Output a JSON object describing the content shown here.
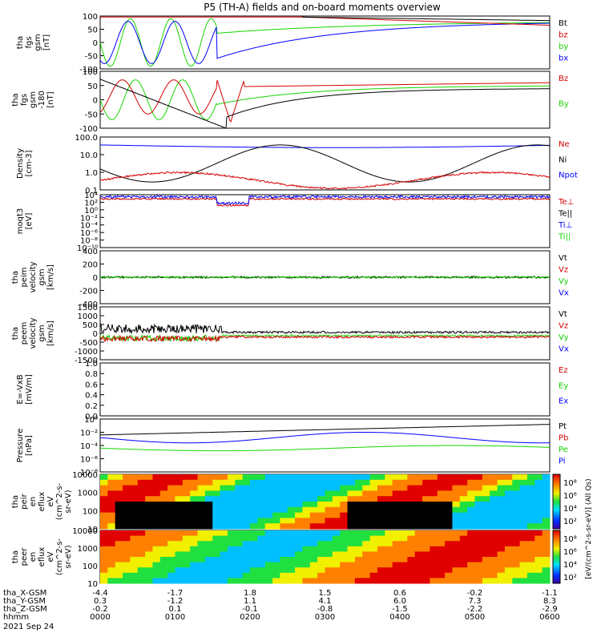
{
  "title": "P5 (TH-A) fields and on-board moments overview",
  "colors": {
    "black": "#000000",
    "red": "#d40000",
    "green": "#16d400",
    "blue": "#0000ff",
    "yellow": "#ffff00"
  },
  "chart_data": [
    {
      "type": "line",
      "ylabel": [
        "tha",
        "fgs",
        "gsm",
        "[nT]"
      ],
      "ylim": [
        -100,
        100
      ],
      "yticks": [
        "100",
        "50",
        "0",
        "-50",
        "-100"
      ],
      "legend": [
        {
          "name": "Bt",
          "color": "black"
        },
        {
          "name": "bz",
          "color": "red"
        },
        {
          "name": "by",
          "color": "green"
        },
        {
          "name": "bx",
          "color": "blue"
        }
      ]
    },
    {
      "type": "line",
      "ylabel": [
        "tha",
        "fgs",
        "gsm",
        "-180",
        "[nT]"
      ],
      "ylim": [
        -120,
        100
      ],
      "yticks": [
        "100",
        "50",
        "0",
        "-50",
        "-100"
      ],
      "legend": [
        {
          "name": "Bz",
          "color": "red"
        },
        {
          "name": "By",
          "color": "green"
        }
      ]
    },
    {
      "type": "line",
      "log": true,
      "ylabel": [
        "Density",
        "[cm-3]"
      ],
      "yticks": [
        "100.0",
        "10.0",
        "1.0",
        "0.1"
      ],
      "legend": [
        {
          "name": "Ne",
          "color": "red"
        },
        {
          "name": "Ni",
          "color": "black"
        },
        {
          "name": "Npot",
          "color": "blue"
        }
      ]
    },
    {
      "type": "line",
      "log": true,
      "ylabel": [
        "moqt3",
        "[eV]"
      ],
      "yticks": [
        "10⁴",
        "10²",
        "10⁰",
        "10⁻²",
        "10⁻⁴",
        "10⁻⁶",
        "10⁻⁸",
        "10⁻¹⁰"
      ],
      "legend": [
        {
          "name": "Te⊥",
          "color": "red"
        },
        {
          "name": "Te||",
          "color": "black"
        },
        {
          "name": "Ti⊥",
          "color": "blue"
        },
        {
          "name": "Ti||",
          "color": "green"
        }
      ]
    },
    {
      "type": "line",
      "ylabel": [
        "tha",
        "peim",
        "velocity",
        "gsm",
        "[km/s]"
      ],
      "ylim": [
        -400,
        400
      ],
      "yticks": [
        "400",
        "200",
        "0",
        "-200",
        "-400"
      ],
      "legend": [
        {
          "name": "Vt",
          "color": "black"
        },
        {
          "name": "Vz",
          "color": "red"
        },
        {
          "name": "Vy",
          "color": "green"
        },
        {
          "name": "Vx",
          "color": "blue"
        }
      ]
    },
    {
      "type": "line",
      "ylabel": [
        "tha",
        "peem",
        "velocity",
        "gsm",
        "[km/s]"
      ],
      "ylim": [
        -1500,
        1500
      ],
      "yticks": [
        "1500",
        "1000",
        "500",
        "0",
        "-500",
        "-1000",
        "-1500"
      ],
      "legend": [
        {
          "name": "Vt",
          "color": "black"
        },
        {
          "name": "Vz",
          "color": "red"
        },
        {
          "name": "Vy",
          "color": "green"
        },
        {
          "name": "Vx",
          "color": "blue"
        }
      ]
    },
    {
      "type": "line",
      "ylabel": [
        "E=-VxB",
        "[mV/m]"
      ],
      "ylim": [
        0,
        1
      ],
      "yticks": [
        "1.0",
        "0.8",
        "0.6",
        "0.4",
        "0.2",
        "0.0"
      ],
      "legend": [
        {
          "name": "Ez",
          "color": "red"
        },
        {
          "name": "Ey",
          "color": "green"
        },
        {
          "name": "Ex",
          "color": "blue"
        }
      ]
    },
    {
      "type": "line",
      "log": true,
      "ylabel": [
        "Pressure",
        "[nPa]"
      ],
      "yticks": [
        "10⁰",
        "10⁻²",
        "10⁻⁴",
        "10⁻⁶",
        "10⁻⁸"
      ],
      "legend": [
        {
          "name": "Pt",
          "color": "black"
        },
        {
          "name": "Pb",
          "color": "red"
        },
        {
          "name": "Pe",
          "color": "green"
        },
        {
          "name": "Pi",
          "color": "blue"
        }
      ]
    },
    {
      "type": "heatmap",
      "ylabel": [
        "tha",
        "peir",
        "en",
        "eflux",
        "eV",
        "(cm^2-s-",
        "sr-eV)"
      ],
      "yticks": [
        "10000",
        "1000",
        "100",
        "10"
      ]
    },
    {
      "type": "heatmap",
      "ylabel": [
        "tha",
        "peer",
        "en",
        "eflux",
        "eV",
        "(cm^2-s-",
        "sr-eV)"
      ],
      "yticks": [
        "10000",
        "1000",
        "100",
        "10"
      ]
    }
  ],
  "colorbar": {
    "label": "[eV/(cm^2-s-sr-eV)] (All Qs)",
    "upper_ticks": [
      "10⁸",
      "10⁶",
      "10⁴",
      "10²"
    ],
    "lower_ticks": [
      "10⁸",
      "10⁶",
      "10⁴",
      "10²"
    ]
  },
  "xaxis": {
    "rows": [
      {
        "label": "tha_X-GSM",
        "values": [
          "-4.4",
          "-1.7",
          "1.8",
          "1.5",
          "0.6",
          "-0.2",
          "-1.1"
        ]
      },
      {
        "label": "tha_Y-GSM",
        "values": [
          "0.3",
          "-1.2",
          "1.1",
          "4.1",
          "6.0",
          "7.3",
          "8.3"
        ]
      },
      {
        "label": "tha_Z-GSM",
        "values": [
          "-0.2",
          "0.1",
          "-0.1",
          "-0.8",
          "-1.5",
          "-2.2",
          "-2.9"
        ]
      },
      {
        "label": "hhmm",
        "values": [
          "0000",
          "0100",
          "0200",
          "0300",
          "0400",
          "0500",
          "0600"
        ]
      }
    ],
    "date": "2021 Sep 24"
  }
}
